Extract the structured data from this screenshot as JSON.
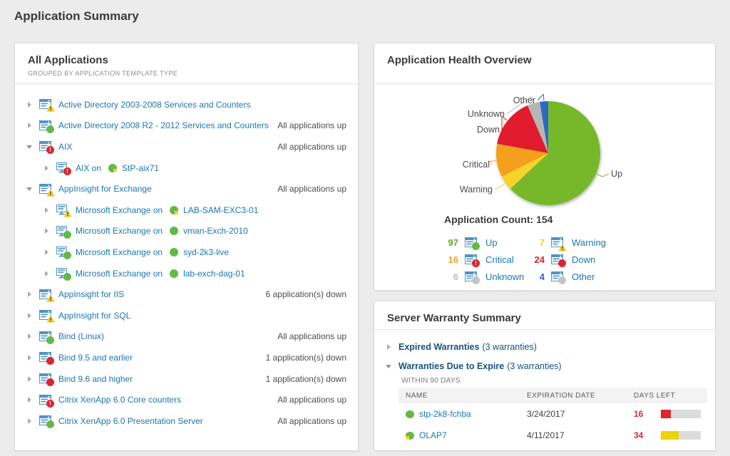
{
  "page_title": "Application Summary",
  "chart_data": {
    "type": "pie",
    "title": "Application Health Overview",
    "total": 154,
    "slices": [
      {
        "name": "Up",
        "value": 97,
        "color": "#76B82A"
      },
      {
        "name": "Warning",
        "value": 7,
        "color": "#F6D32B"
      },
      {
        "name": "Critical",
        "value": 16,
        "color": "#F5A01B"
      },
      {
        "name": "Down",
        "value": 24,
        "color": "#E01F2D"
      },
      {
        "name": "Unknown",
        "value": 6,
        "color": "#B5B5B5"
      },
      {
        "name": "Other",
        "value": 4,
        "color": "#2A6BC6"
      }
    ],
    "legend_position": "below",
    "labels_on": true
  },
  "panels": {
    "apps": {
      "title": "All Applications",
      "subtitle": "GROUPED BY APPLICATION TEMPLATE TYPE",
      "rows": [
        {
          "level": 0,
          "expanded": false,
          "icon": "app",
          "status": "warning",
          "label": "Active Directory 2003-2008 Services and Counters",
          "right": ""
        },
        {
          "level": 0,
          "expanded": false,
          "icon": "app",
          "status": "up",
          "label": "Active Directory 2008 R2 - 2012 Services and Counters",
          "right": "All applications up"
        },
        {
          "level": 0,
          "expanded": true,
          "icon": "app",
          "status": "critical",
          "label": "AIX",
          "right": "All applications up"
        },
        {
          "level": 1,
          "expanded": false,
          "icon": "monitor",
          "status": "critical",
          "label": "AIX on",
          "server": "StP-aix71",
          "dot": "green-yellow-br",
          "right": ""
        },
        {
          "level": 0,
          "expanded": true,
          "icon": "app",
          "status": "warning",
          "label": "AppInsight for Exchange",
          "right": "All applications up"
        },
        {
          "level": 1,
          "expanded": false,
          "icon": "monitor",
          "status": "warning",
          "label": "Microsoft Exchange on",
          "server": "LAB-SAM-EXC3-01",
          "dot": "green-yellow-br",
          "right": ""
        },
        {
          "level": 1,
          "expanded": false,
          "icon": "monitor",
          "status": "up",
          "label": "Microsoft Exchange on",
          "server": "vman-Exch-2010",
          "dot": "green",
          "right": ""
        },
        {
          "level": 1,
          "expanded": false,
          "icon": "monitor",
          "status": "up",
          "label": "Microsoft Exchange on",
          "server": "syd-2k3-live",
          "dot": "green",
          "right": ""
        },
        {
          "level": 1,
          "expanded": false,
          "icon": "monitor",
          "status": "up",
          "label": "Microsoft Exchange on",
          "server": "lab-exch-dag-01",
          "dot": "green",
          "right": ""
        },
        {
          "level": 0,
          "expanded": false,
          "icon": "app",
          "status": "warning",
          "label": "AppInsight for IIS",
          "right": "6 application(s) down"
        },
        {
          "level": 0,
          "expanded": false,
          "icon": "app",
          "status": "warning",
          "label": "AppInsight for SQL",
          "right": ""
        },
        {
          "level": 0,
          "expanded": false,
          "icon": "app",
          "status": "up",
          "label": "Bind (Linux)",
          "right": "All applications up"
        },
        {
          "level": 0,
          "expanded": false,
          "icon": "app",
          "status": "down",
          "label": "Bind 9.5 and earlier",
          "right": "1 application(s) down"
        },
        {
          "level": 0,
          "expanded": false,
          "icon": "app",
          "status": "down",
          "label": "Bind 9.6 and higher",
          "right": "1 application(s) down"
        },
        {
          "level": 0,
          "expanded": false,
          "icon": "app",
          "status": "critical",
          "label": "Citrix XenApp 6.0 Core counters",
          "right": "All applications up"
        },
        {
          "level": 0,
          "expanded": false,
          "icon": "app",
          "status": "up",
          "label": "Citrix XenApp 6.0 Presentation Server",
          "right": "All applications up"
        }
      ]
    },
    "health": {
      "title": "Application Health Overview",
      "count_label": "Application Count: 154",
      "legend": [
        {
          "count": "97",
          "label": "Up",
          "color": "#5FA828",
          "status": "up"
        },
        {
          "count": "7",
          "label": "Warning",
          "color": "#EFD21F",
          "status": "warning"
        },
        {
          "count": "16",
          "label": "Critical",
          "color": "#F49C20",
          "status": "critical"
        },
        {
          "count": "24",
          "label": "Down",
          "color": "#DC1E2B",
          "status": "down"
        },
        {
          "count": "6",
          "label": "Unknown",
          "color": "#B9BEC2",
          "status": "unknown"
        },
        {
          "count": "4",
          "label": "Other",
          "color": "#2C64C8",
          "status": "unknown"
        }
      ]
    },
    "warranty": {
      "title": "Server Warranty Summary",
      "groups": [
        {
          "expanded": false,
          "title": "Expired Warranties",
          "suffix": "(3 warranties)"
        },
        {
          "expanded": true,
          "title": "Warranties Due to Expire",
          "suffix": "(3 warranties)"
        }
      ],
      "within_label": "WITHIN 90 DAYS",
      "table": {
        "headers": [
          "NAME",
          "EXPIRATION DATE",
          "DAYS LEFT"
        ],
        "rows": [
          {
            "name": "stp-2k8-fchba",
            "dot": "green",
            "expiration": "3/24/2017",
            "days_left": "16",
            "bar_color": "#DC252E",
            "bar_pct": 25
          },
          {
            "name": "OLAP7",
            "dot": "green-yellow-bl",
            "expiration": "4/11/2017",
            "days_left": "34",
            "bar_color": "#EDD205",
            "bar_pct": 45
          }
        ]
      }
    }
  }
}
